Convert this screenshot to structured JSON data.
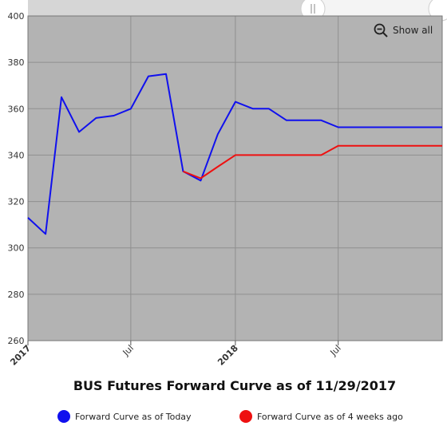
{
  "title": "BUS Futures Forward Curve as of 11/29/2017",
  "show_all_label": "Show all",
  "icons": {
    "zoom": "zoom-out-icon",
    "slider_handle": "slider-handle-icon"
  },
  "colors": {
    "plot_background": "#b3b3b3",
    "today": "#1010ee",
    "four_weeks": "#ee1010"
  },
  "chart_data": {
    "type": "line",
    "title": "BUS Futures Forward Curve as of 11/29/2017",
    "xlabel": "",
    "ylabel": "",
    "ylim": [
      260,
      400
    ],
    "yticks": [
      260,
      280,
      300,
      320,
      340,
      360,
      380,
      400
    ],
    "xticks": [
      {
        "label": "2017",
        "date": "2017-01-01",
        "bold": true
      },
      {
        "label": "Jul",
        "date": "2017-07-01",
        "bold": false
      },
      {
        "label": "2018",
        "date": "2018-01-01",
        "bold": true
      },
      {
        "label": "Jul",
        "date": "2018-07-01",
        "bold": false
      }
    ],
    "xlim": [
      "2017-01-01",
      "2018-12-31"
    ],
    "grid": true,
    "legend_position": "bottom",
    "series": [
      {
        "name": "Forward Curve as of Today",
        "color": "#1010ee",
        "points": [
          [
            "2017-01-01",
            313
          ],
          [
            "2017-02-01",
            306
          ],
          [
            "2017-03-01",
            365
          ],
          [
            "2017-04-01",
            350
          ],
          [
            "2017-05-01",
            356
          ],
          [
            "2017-06-01",
            357
          ],
          [
            "2017-07-01",
            360
          ],
          [
            "2017-08-01",
            374
          ],
          [
            "2017-09-01",
            375
          ],
          [
            "2017-10-01",
            333
          ],
          [
            "2017-11-01",
            329
          ],
          [
            "2017-12-01",
            349
          ],
          [
            "2018-01-01",
            363
          ],
          [
            "2018-02-01",
            360
          ],
          [
            "2018-03-01",
            360
          ],
          [
            "2018-04-01",
            355
          ],
          [
            "2018-05-01",
            355
          ],
          [
            "2018-06-01",
            355
          ],
          [
            "2018-07-01",
            352
          ],
          [
            "2018-08-01",
            352
          ],
          [
            "2018-09-01",
            352
          ],
          [
            "2018-10-01",
            352
          ],
          [
            "2018-11-01",
            352
          ],
          [
            "2018-12-01",
            352
          ],
          [
            "2018-12-31",
            352
          ]
        ]
      },
      {
        "name": "Forward Curve as of 4 weeks ago",
        "color": "#ee1010",
        "points": [
          [
            "2017-10-01",
            333
          ],
          [
            "2017-11-01",
            330
          ],
          [
            "2017-12-01",
            335
          ],
          [
            "2018-01-01",
            340
          ],
          [
            "2018-02-01",
            340
          ],
          [
            "2018-03-01",
            340
          ],
          [
            "2018-04-01",
            340
          ],
          [
            "2018-05-01",
            340
          ],
          [
            "2018-06-01",
            340
          ],
          [
            "2018-07-01",
            344
          ],
          [
            "2018-08-01",
            344
          ],
          [
            "2018-09-01",
            344
          ],
          [
            "2018-10-01",
            344
          ],
          [
            "2018-11-01",
            344
          ],
          [
            "2018-12-01",
            344
          ],
          [
            "2018-12-31",
            344
          ]
        ]
      }
    ]
  }
}
